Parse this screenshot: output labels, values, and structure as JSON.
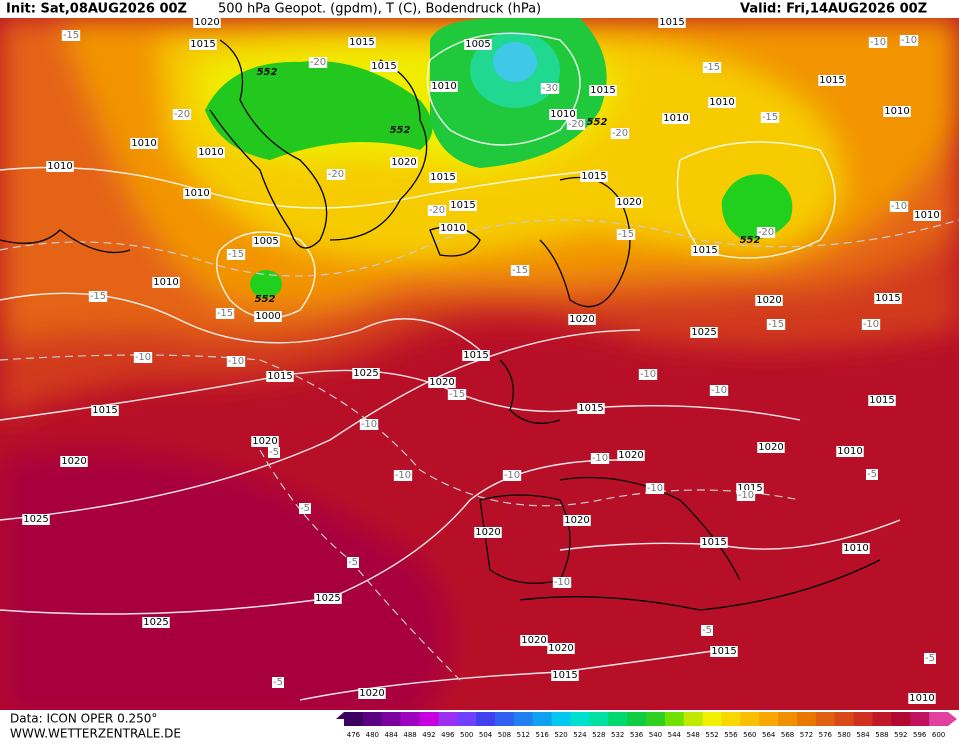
{
  "header": {
    "init": "Init: Sat,08AUG2026 00Z",
    "title": "500 hPa Geopot. (gpdm), T (C), Bodendruck (hPa)",
    "valid": "Valid: Fri,14AUG2026 00Z"
  },
  "footer": {
    "data": "Data: ICON OPER 0.250°",
    "site": "WWW.WETTERZENTRALE.DE"
  },
  "colorbar": {
    "labels": [
      "476",
      "480",
      "484",
      "488",
      "492",
      "496",
      "500",
      "504",
      "508",
      "512",
      "516",
      "520",
      "524",
      "528",
      "532",
      "536",
      "540",
      "544",
      "548",
      "552",
      "556",
      "560",
      "564",
      "568",
      "572",
      "576",
      "580",
      "584",
      "588",
      "592",
      "596",
      "600"
    ],
    "colors": [
      "#3c0060",
      "#5a0080",
      "#7a00a0",
      "#a000c0",
      "#c800e0",
      "#9c30f0",
      "#7040ff",
      "#4040f0",
      "#3060f0",
      "#2080f0",
      "#10a0f0",
      "#00c8f0",
      "#00e0d0",
      "#00e0a0",
      "#00d870",
      "#10cc40",
      "#30d020",
      "#70e000",
      "#c0e800",
      "#f0f000",
      "#f8d800",
      "#f8c000",
      "#f8a800",
      "#f09000",
      "#e87800",
      "#e06010",
      "#d84818",
      "#d03020",
      "#c01828",
      "#b00830",
      "#c01060",
      "#e040a0"
    ]
  },
  "map": {
    "isobar_labels": [
      "1015",
      "1020",
      "1015",
      "1015",
      "1005",
      "1010",
      "1015",
      "1010",
      "1010",
      "1010",
      "1015",
      "1010",
      "1010",
      "1015",
      "1010",
      "1010",
      "1010",
      "1010",
      "1020",
      "1015",
      "1015",
      "1010",
      "1015",
      "1020",
      "1015",
      "1005",
      "1010",
      "1000",
      "1015",
      "1025",
      "1020",
      "1015",
      "1015",
      "1020",
      "1025",
      "1020",
      "1020",
      "1025",
      "1020",
      "1015",
      "1020",
      "1020",
      "1010",
      "1015",
      "1015",
      "1020",
      "1020",
      "1015",
      "1010",
      "1025",
      "1025",
      "1020",
      "1020",
      "1015",
      "1015",
      "1020",
      "1010",
      "1015"
    ],
    "temperature_labels": [
      "-15",
      "-20",
      "-20",
      "-30",
      "-20",
      "-20",
      "-15",
      "-15",
      "-10",
      "-10",
      "-20",
      "-20",
      "-15",
      "-20",
      "-10",
      "-15",
      "-15",
      "-15",
      "-15",
      "-10",
      "-10",
      "-10",
      "-15",
      "-10",
      "-15",
      "-10",
      "-10",
      "-10",
      "-10",
      "-10",
      "-10",
      "-10",
      "-5",
      "-5",
      "-5",
      "-10",
      "-5",
      "-5",
      "-5",
      "-5"
    ],
    "geopotential_labels": [
      "552",
      "552",
      "552",
      "552",
      "552"
    ]
  }
}
